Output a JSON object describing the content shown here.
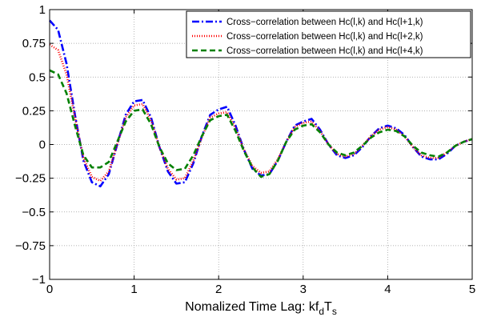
{
  "chart_data": {
    "type": "line",
    "title": "",
    "xlabel": {
      "text": "Nomalized Time Lag: kf",
      "sub1": "d",
      "mid": "T",
      "sub2": "s"
    },
    "ylabel": "",
    "xlim": [
      0,
      5
    ],
    "ylim": [
      -1,
      1
    ],
    "grid": true,
    "legend_position": "top-right",
    "x_ticks": [
      "0",
      "1",
      "2",
      "3",
      "4",
      "5"
    ],
    "x_tick_values": [
      0,
      1,
      2,
      3,
      4,
      5
    ],
    "y_ticks": [
      "1",
      "0.75",
      "0.5",
      "0.25",
      "0",
      "−0.25",
      "−0.5",
      "−0.75",
      "−1"
    ],
    "y_tick_values": [
      1,
      0.75,
      0.5,
      0.25,
      0,
      -0.25,
      -0.5,
      -0.75,
      -1
    ],
    "x": [
      0,
      0.1,
      0.2,
      0.3,
      0.4,
      0.5,
      0.6,
      0.7,
      0.8,
      0.9,
      1.0,
      1.1,
      1.2,
      1.3,
      1.4,
      1.5,
      1.6,
      1.7,
      1.8,
      1.9,
      2.0,
      2.1,
      2.2,
      2.3,
      2.4,
      2.5,
      2.6,
      2.7,
      2.8,
      2.9,
      3.0,
      3.1,
      3.2,
      3.3,
      3.4,
      3.5,
      3.6,
      3.7,
      3.8,
      3.9,
      4.0,
      4.1,
      4.2,
      4.3,
      4.4,
      4.5,
      4.6,
      4.7,
      4.8,
      4.9,
      5.0
    ],
    "series": [
      {
        "name": "Cross−correlation between Hc(l,k) and Hc(l+1,k)",
        "color": "#0000ff",
        "dash": "9,3,2,3",
        "values": [
          0.92,
          0.85,
          0.6,
          0.22,
          -0.12,
          -0.28,
          -0.31,
          -0.22,
          0.0,
          0.22,
          0.32,
          0.33,
          0.2,
          -0.02,
          -0.2,
          -0.29,
          -0.28,
          -0.14,
          0.06,
          0.22,
          0.26,
          0.28,
          0.14,
          -0.04,
          -0.18,
          -0.23,
          -0.22,
          -0.12,
          0.02,
          0.14,
          0.17,
          0.19,
          0.11,
          0.0,
          -0.08,
          -0.1,
          -0.08,
          -0.02,
          0.06,
          0.12,
          0.14,
          0.12,
          0.07,
          -0.02,
          -0.09,
          -0.11,
          -0.11,
          -0.07,
          -0.01,
          0.02,
          0.04
        ]
      },
      {
        "name": "Cross−correlation between Hc(l,k) and Hc(l+2,k)",
        "color": "#ff0000",
        "dash": "1,2",
        "values": [
          0.74,
          0.7,
          0.52,
          0.2,
          -0.1,
          -0.24,
          -0.27,
          -0.2,
          0.0,
          0.2,
          0.29,
          0.3,
          0.18,
          -0.02,
          -0.18,
          -0.26,
          -0.25,
          -0.12,
          0.05,
          0.2,
          0.23,
          0.24,
          0.12,
          -0.04,
          -0.16,
          -0.21,
          -0.2,
          -0.11,
          0.02,
          0.13,
          0.16,
          0.17,
          0.1,
          0.0,
          -0.07,
          -0.09,
          -0.07,
          -0.01,
          0.06,
          0.11,
          0.13,
          0.11,
          0.06,
          -0.02,
          -0.08,
          -0.1,
          -0.1,
          -0.06,
          -0.01,
          0.02,
          0.04
        ]
      },
      {
        "name": "Cross−correlation between Hc(l,k) and Hc(l+4,k)",
        "color": "#008000",
        "dash": "7,4",
        "values": [
          0.55,
          0.52,
          0.38,
          0.14,
          -0.08,
          -0.17,
          -0.17,
          -0.13,
          0.02,
          0.17,
          0.25,
          0.26,
          0.15,
          -0.02,
          -0.14,
          -0.19,
          -0.18,
          -0.08,
          0.06,
          0.18,
          0.21,
          0.22,
          0.1,
          -0.05,
          -0.17,
          -0.24,
          -0.22,
          -0.12,
          0.02,
          0.11,
          0.14,
          0.15,
          0.09,
          0.0,
          -0.06,
          -0.08,
          -0.06,
          -0.01,
          0.05,
          0.09,
          0.11,
          0.1,
          0.06,
          -0.01,
          -0.06,
          -0.08,
          -0.09,
          -0.06,
          -0.01,
          0.02,
          0.04
        ]
      }
    ]
  }
}
